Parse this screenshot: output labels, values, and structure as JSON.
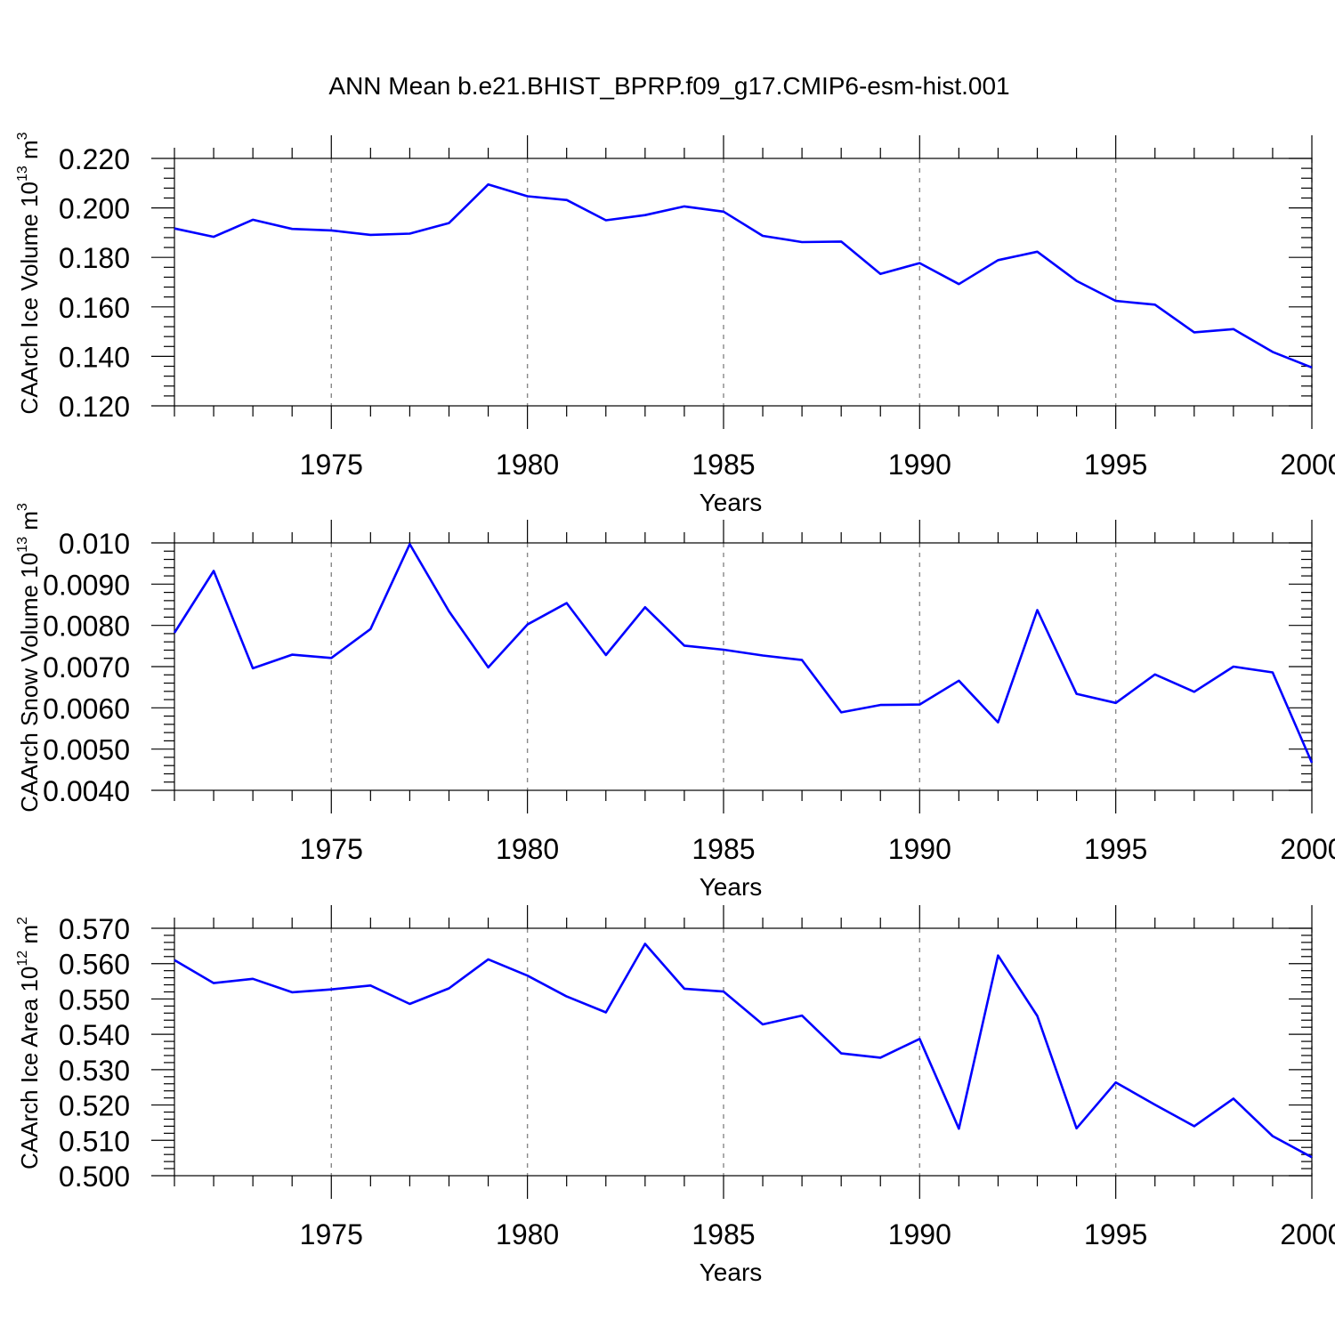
{
  "title": "ANN Mean b.e21.BHIST_BPRP.f09_g17.CMIP6-esm-hist.001",
  "colors": {
    "line": "#0000ff",
    "grid": "#888888",
    "axis": "#000000"
  },
  "chart_data": [
    {
      "type": "line",
      "xlabel": "Years",
      "ylabel": {
        "main": "CAArch Ice Volume 10",
        "exp": "13",
        "unit": " m",
        "unit_exp": "3"
      },
      "xlim": [
        1971,
        2000
      ],
      "ylim": [
        0.12,
        0.22
      ],
      "xticks": [
        1975,
        1980,
        1985,
        1990,
        1995,
        2000
      ],
      "xtick_labels": [
        "1975",
        "1980",
        "1985",
        "1990",
        "1995",
        "2000"
      ],
      "yticks": [
        0.12,
        0.14,
        0.16,
        0.18,
        0.2,
        0.22
      ],
      "ytick_labels": [
        "0.120",
        "0.140",
        "0.160",
        "0.180",
        "0.200",
        "0.220"
      ],
      "yminor_step": 0.004,
      "grid": "x-dashed",
      "x": [
        1971,
        1972,
        1973,
        1974,
        1975,
        1976,
        1977,
        1978,
        1979,
        1980,
        1981,
        1982,
        1983,
        1984,
        1985,
        1986,
        1987,
        1988,
        1989,
        1990,
        1991,
        1992,
        1993,
        1994,
        1995,
        1996,
        1997,
        1998,
        1999,
        2000
      ],
      "values": [
        0.1917,
        0.1883,
        0.1952,
        0.1915,
        0.1909,
        0.1891,
        0.1896,
        0.1939,
        0.2095,
        0.2047,
        0.2032,
        0.195,
        0.1971,
        0.2006,
        0.1985,
        0.1887,
        0.1862,
        0.1864,
        0.1733,
        0.1777,
        0.1692,
        0.1789,
        0.1823,
        0.1705,
        0.1624,
        0.1609,
        0.1497,
        0.151,
        0.1418,
        0.1355
      ]
    },
    {
      "type": "line",
      "xlabel": "Years",
      "ylabel": {
        "main": "CAArch Snow Volume 10",
        "exp": "13",
        "unit": " m",
        "unit_exp": "3"
      },
      "xlim": [
        1971,
        2000
      ],
      "ylim": [
        0.004,
        0.01
      ],
      "xticks": [
        1975,
        1980,
        1985,
        1990,
        1995,
        2000
      ],
      "xtick_labels": [
        "1975",
        "1980",
        "1985",
        "1990",
        "1995",
        "2000"
      ],
      "yticks": [
        0.004,
        0.005,
        0.006,
        0.007,
        0.008,
        0.009,
        0.01
      ],
      "ytick_labels": [
        "0.0040",
        "0.0050",
        "0.0060",
        "0.0070",
        "0.0080",
        "0.0090",
        "0.010"
      ],
      "yminor_step": 0.0002,
      "grid": "x-dashed",
      "x": [
        1971,
        1972,
        1973,
        1974,
        1975,
        1976,
        1977,
        1978,
        1979,
        1980,
        1981,
        1982,
        1983,
        1984,
        1985,
        1986,
        1987,
        1988,
        1989,
        1990,
        1991,
        1992,
        1993,
        1994,
        1995,
        1996,
        1997,
        1998,
        1999,
        2000
      ],
      "values": [
        0.00782,
        0.00932,
        0.00696,
        0.00729,
        0.00721,
        0.00791,
        0.00997,
        0.00834,
        0.00698,
        0.00802,
        0.00854,
        0.00728,
        0.00844,
        0.00751,
        0.00741,
        0.00727,
        0.00716,
        0.00589,
        0.00607,
        0.00608,
        0.00666,
        0.00565,
        0.00837,
        0.00634,
        0.00612,
        0.00681,
        0.00639,
        0.007,
        0.00686,
        0.00467
      ]
    },
    {
      "type": "line",
      "xlabel": "Years",
      "ylabel": {
        "main": "CAArch Ice Area 10",
        "exp": "12",
        "unit": " m",
        "unit_exp": "2"
      },
      "xlim": [
        1971,
        2000
      ],
      "ylim": [
        0.5,
        0.57
      ],
      "xticks": [
        1975,
        1980,
        1985,
        1990,
        1995,
        2000
      ],
      "xtick_labels": [
        "1975",
        "1980",
        "1985",
        "1990",
        "1995",
        "2000"
      ],
      "yticks": [
        0.5,
        0.51,
        0.52,
        0.53,
        0.54,
        0.55,
        0.56,
        0.57
      ],
      "ytick_labels": [
        "0.500",
        "0.510",
        "0.520",
        "0.530",
        "0.540",
        "0.550",
        "0.560",
        "0.570"
      ],
      "yminor_step": 0.002,
      "grid": "x-dashed",
      "x": [
        1971,
        1972,
        1973,
        1974,
        1975,
        1976,
        1977,
        1978,
        1979,
        1980,
        1981,
        1982,
        1983,
        1984,
        1985,
        1986,
        1987,
        1988,
        1989,
        1990,
        1991,
        1992,
        1993,
        1994,
        1995,
        1996,
        1997,
        1998,
        1999,
        2000
      ],
      "values": [
        0.561,
        0.5545,
        0.5557,
        0.5519,
        0.5527,
        0.5538,
        0.5486,
        0.553,
        0.5612,
        0.5566,
        0.5507,
        0.5462,
        0.5656,
        0.5529,
        0.5521,
        0.5428,
        0.5453,
        0.5346,
        0.5334,
        0.5387,
        0.5133,
        0.5623,
        0.5452,
        0.5134,
        0.5264,
        0.5201,
        0.514,
        0.5218,
        0.5112,
        0.5052
      ]
    }
  ]
}
